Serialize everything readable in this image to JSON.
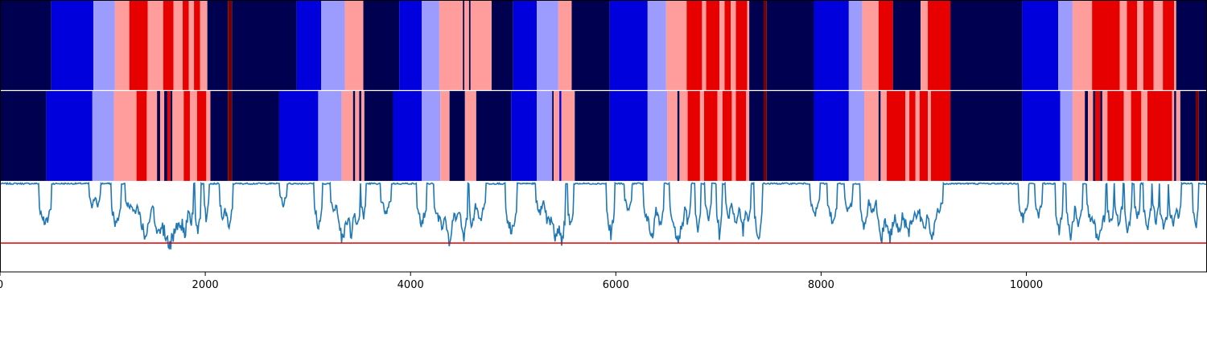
{
  "chart_data": {
    "type": "heatmap",
    "xlim": [
      0,
      11760
    ],
    "x_ticks": [
      0,
      2000,
      4000,
      6000,
      8000,
      10000
    ],
    "x_tick_labels": [
      "0",
      "2000",
      "4000",
      "6000",
      "8000",
      "10000"
    ],
    "colors": {
      "navy": "#000050",
      "blue": "#0000dc",
      "lightblue": "#9c9cff",
      "pink": "#ff9c9c",
      "red": "#e60000",
      "darkred": "#7a0000",
      "line": "#1f77b4",
      "threshold": "#e00000",
      "separator": "#ffffff",
      "frame": "#000000"
    },
    "rows": [
      {
        "segments": [
          [
            0,
            500,
            "navy"
          ],
          [
            500,
            910,
            "blue"
          ],
          [
            910,
            1120,
            "lightblue"
          ],
          [
            1120,
            1260,
            "pink"
          ],
          [
            1260,
            1440,
            "red"
          ],
          [
            1440,
            1590,
            "pink"
          ],
          [
            1590,
            1690,
            "red"
          ],
          [
            1690,
            1780,
            "pink"
          ],
          [
            1780,
            1840,
            "red"
          ],
          [
            1840,
            1890,
            "pink"
          ],
          [
            1890,
            1950,
            "red"
          ],
          [
            1950,
            2020,
            "pink"
          ],
          [
            2020,
            2220,
            "navy"
          ],
          [
            2220,
            2260,
            "darkred"
          ],
          [
            2260,
            2890,
            "navy"
          ],
          [
            2890,
            3130,
            "blue"
          ],
          [
            3130,
            3360,
            "lightblue"
          ],
          [
            3360,
            3540,
            "pink"
          ],
          [
            3540,
            3890,
            "navy"
          ],
          [
            3890,
            4110,
            "blue"
          ],
          [
            4110,
            4280,
            "lightblue"
          ],
          [
            4280,
            4510,
            "pink"
          ],
          [
            4510,
            4525,
            "navy"
          ],
          [
            4525,
            4570,
            "pink"
          ],
          [
            4570,
            4585,
            "navy"
          ],
          [
            4585,
            4790,
            "pink"
          ],
          [
            4790,
            5000,
            "navy"
          ],
          [
            5000,
            5230,
            "blue"
          ],
          [
            5230,
            5440,
            "lightblue"
          ],
          [
            5440,
            5570,
            "pink"
          ],
          [
            5570,
            5940,
            "navy"
          ],
          [
            5940,
            6310,
            "blue"
          ],
          [
            6310,
            6490,
            "lightblue"
          ],
          [
            6490,
            6690,
            "pink"
          ],
          [
            6690,
            6840,
            "red"
          ],
          [
            6840,
            6880,
            "pink"
          ],
          [
            6880,
            7010,
            "red"
          ],
          [
            7010,
            7060,
            "pink"
          ],
          [
            7060,
            7120,
            "red"
          ],
          [
            7120,
            7170,
            "pink"
          ],
          [
            7170,
            7280,
            "red"
          ],
          [
            7280,
            7300,
            "pink"
          ],
          [
            7300,
            7440,
            "navy"
          ],
          [
            7440,
            7470,
            "darkred"
          ],
          [
            7470,
            7930,
            "navy"
          ],
          [
            7930,
            8270,
            "blue"
          ],
          [
            8270,
            8400,
            "lightblue"
          ],
          [
            8400,
            8560,
            "pink"
          ],
          [
            8560,
            8700,
            "red"
          ],
          [
            8700,
            8970,
            "navy"
          ],
          [
            8970,
            9040,
            "pink"
          ],
          [
            9040,
            9260,
            "red"
          ],
          [
            9260,
            9960,
            "navy"
          ],
          [
            9960,
            10310,
            "blue"
          ],
          [
            10310,
            10450,
            "lightblue"
          ],
          [
            10450,
            10640,
            "pink"
          ],
          [
            10640,
            10910,
            "red"
          ],
          [
            10910,
            10980,
            "pink"
          ],
          [
            10980,
            11080,
            "red"
          ],
          [
            11080,
            11140,
            "pink"
          ],
          [
            11140,
            11240,
            "red"
          ],
          [
            11240,
            11330,
            "pink"
          ],
          [
            11330,
            11440,
            "red"
          ],
          [
            11440,
            11460,
            "pink"
          ],
          [
            11460,
            11760,
            "navy"
          ]
        ]
      },
      {
        "segments": [
          [
            0,
            450,
            "navy"
          ],
          [
            450,
            900,
            "blue"
          ],
          [
            900,
            1110,
            "lightblue"
          ],
          [
            1110,
            1330,
            "pink"
          ],
          [
            1330,
            1430,
            "red"
          ],
          [
            1430,
            1530,
            "pink"
          ],
          [
            1530,
            1560,
            "navy"
          ],
          [
            1560,
            1600,
            "pink"
          ],
          [
            1600,
            1630,
            "navy"
          ],
          [
            1630,
            1660,
            "red"
          ],
          [
            1660,
            1680,
            "navy"
          ],
          [
            1680,
            1790,
            "pink"
          ],
          [
            1790,
            1850,
            "red"
          ],
          [
            1850,
            1920,
            "pink"
          ],
          [
            1920,
            2010,
            "red"
          ],
          [
            2010,
            2050,
            "pink"
          ],
          [
            2050,
            2220,
            "navy"
          ],
          [
            2220,
            2260,
            "darkred"
          ],
          [
            2260,
            2720,
            "navy"
          ],
          [
            2720,
            3100,
            "blue"
          ],
          [
            3100,
            3330,
            "lightblue"
          ],
          [
            3330,
            3440,
            "pink"
          ],
          [
            3440,
            3460,
            "navy"
          ],
          [
            3460,
            3500,
            "pink"
          ],
          [
            3500,
            3520,
            "navy"
          ],
          [
            3520,
            3550,
            "pink"
          ],
          [
            3550,
            3830,
            "navy"
          ],
          [
            3830,
            4110,
            "blue"
          ],
          [
            4110,
            4290,
            "lightblue"
          ],
          [
            4290,
            4380,
            "pink"
          ],
          [
            4380,
            4530,
            "navy"
          ],
          [
            4530,
            4640,
            "pink"
          ],
          [
            4640,
            4980,
            "navy"
          ],
          [
            4980,
            5230,
            "blue"
          ],
          [
            5230,
            5380,
            "lightblue"
          ],
          [
            5380,
            5395,
            "navy"
          ],
          [
            5395,
            5450,
            "pink"
          ],
          [
            5450,
            5470,
            "blue"
          ],
          [
            5470,
            5600,
            "pink"
          ],
          [
            5600,
            5940,
            "navy"
          ],
          [
            5940,
            6310,
            "blue"
          ],
          [
            6310,
            6500,
            "lightblue"
          ],
          [
            6500,
            6600,
            "pink"
          ],
          [
            6600,
            6620,
            "navy"
          ],
          [
            6620,
            6700,
            "pink"
          ],
          [
            6700,
            6820,
            "red"
          ],
          [
            6820,
            6860,
            "pink"
          ],
          [
            6860,
            6990,
            "red"
          ],
          [
            6990,
            7040,
            "pink"
          ],
          [
            7040,
            7130,
            "red"
          ],
          [
            7130,
            7170,
            "pink"
          ],
          [
            7170,
            7270,
            "red"
          ],
          [
            7270,
            7300,
            "pink"
          ],
          [
            7300,
            7440,
            "navy"
          ],
          [
            7440,
            7470,
            "darkred"
          ],
          [
            7470,
            7930,
            "navy"
          ],
          [
            7930,
            8270,
            "blue"
          ],
          [
            8270,
            8420,
            "lightblue"
          ],
          [
            8420,
            8560,
            "pink"
          ],
          [
            8560,
            8580,
            "navy"
          ],
          [
            8580,
            8640,
            "pink"
          ],
          [
            8640,
            8820,
            "red"
          ],
          [
            8820,
            8860,
            "pink"
          ],
          [
            8860,
            8920,
            "red"
          ],
          [
            8920,
            8960,
            "pink"
          ],
          [
            8960,
            9040,
            "red"
          ],
          [
            9040,
            9070,
            "pink"
          ],
          [
            9070,
            9260,
            "red"
          ],
          [
            9260,
            9960,
            "navy"
          ],
          [
            9960,
            10330,
            "blue"
          ],
          [
            10330,
            10450,
            "lightblue"
          ],
          [
            10450,
            10570,
            "pink"
          ],
          [
            10570,
            10600,
            "navy"
          ],
          [
            10600,
            10650,
            "pink"
          ],
          [
            10650,
            10670,
            "navy"
          ],
          [
            10670,
            10720,
            "red"
          ],
          [
            10720,
            10740,
            "navy"
          ],
          [
            10740,
            10790,
            "pink"
          ],
          [
            10790,
            10950,
            "red"
          ],
          [
            10950,
            11020,
            "pink"
          ],
          [
            11020,
            11120,
            "red"
          ],
          [
            11120,
            11180,
            "pink"
          ],
          [
            11180,
            11420,
            "red"
          ],
          [
            11420,
            11440,
            "pink"
          ],
          [
            11440,
            11460,
            "navy"
          ],
          [
            11460,
            11500,
            "pink"
          ],
          [
            11500,
            11650,
            "navy"
          ],
          [
            11650,
            11680,
            "darkred"
          ],
          [
            11680,
            11760,
            "navy"
          ]
        ]
      }
    ],
    "line_panel": {
      "ylim": [
        -1.0,
        0.0
      ],
      "threshold": -0.68,
      "baseline": -0.02,
      "dips": [
        [
          440,
          60,
          -0.5
        ],
        [
          900,
          30,
          -0.28
        ],
        [
          950,
          30,
          -0.26
        ],
        [
          1130,
          50,
          -0.5
        ],
        [
          1300,
          80,
          -0.35
        ],
        [
          1410,
          60,
          -0.6
        ],
        [
          1450,
          50,
          -0.45
        ],
        [
          1540,
          40,
          -0.65
        ],
        [
          1650,
          100,
          -0.72
        ],
        [
          1760,
          25,
          -0.55
        ],
        [
          1800,
          35,
          -0.62
        ],
        [
          1860,
          25,
          -0.5
        ],
        [
          1930,
          30,
          -0.58
        ],
        [
          2010,
          25,
          -0.42
        ],
        [
          2170,
          30,
          -0.4
        ],
        [
          2230,
          40,
          -0.5
        ],
        [
          2760,
          40,
          -0.25
        ],
        [
          3100,
          40,
          -0.5
        ],
        [
          3260,
          40,
          -0.35
        ],
        [
          3340,
          60,
          -0.65
        ],
        [
          3420,
          40,
          -0.6
        ],
        [
          3480,
          30,
          -0.55
        ],
        [
          3540,
          25,
          -0.4
        ],
        [
          3760,
          50,
          -0.35
        ],
        [
          4110,
          50,
          -0.48
        ],
        [
          4300,
          70,
          -0.5
        ],
        [
          4380,
          40,
          -0.68
        ],
        [
          4450,
          50,
          -0.42
        ],
        [
          4520,
          40,
          -0.6
        ],
        [
          4600,
          30,
          -0.5
        ],
        [
          4680,
          50,
          -0.42
        ],
        [
          4980,
          60,
          -0.55
        ],
        [
          5260,
          40,
          -0.35
        ],
        [
          5340,
          40,
          -0.48
        ],
        [
          5410,
          70,
          -0.62
        ],
        [
          5470,
          40,
          -0.7
        ],
        [
          5560,
          30,
          -0.5
        ],
        [
          5950,
          40,
          -0.6
        ],
        [
          6120,
          40,
          -0.3
        ],
        [
          6300,
          30,
          -0.45
        ],
        [
          6350,
          40,
          -0.62
        ],
        [
          6430,
          40,
          -0.5
        ],
        [
          6550,
          30,
          -0.4
        ],
        [
          6610,
          60,
          -0.68
        ],
        [
          6700,
          30,
          -0.45
        ],
        [
          6800,
          30,
          -0.5
        ],
        [
          6900,
          35,
          -0.42
        ],
        [
          7010,
          30,
          -0.58
        ],
        [
          7100,
          30,
          -0.42
        ],
        [
          7170,
          40,
          -0.5
        ],
        [
          7240,
          30,
          -0.55
        ],
        [
          7290,
          30,
          -0.45
        ],
        [
          7390,
          40,
          -0.62
        ],
        [
          7940,
          50,
          -0.35
        ],
        [
          8110,
          50,
          -0.45
        ],
        [
          8270,
          40,
          -0.35
        ],
        [
          8420,
          40,
          -0.52
        ],
        [
          8500,
          40,
          -0.35
        ],
        [
          8590,
          50,
          -0.6
        ],
        [
          8670,
          60,
          -0.62
        ],
        [
          8760,
          50,
          -0.55
        ],
        [
          8850,
          60,
          -0.6
        ],
        [
          8920,
          40,
          -0.42
        ],
        [
          9000,
          50,
          -0.55
        ],
        [
          9080,
          50,
          -0.6
        ],
        [
          9150,
          40,
          -0.35
        ],
        [
          9970,
          50,
          -0.42
        ],
        [
          10120,
          40,
          -0.38
        ],
        [
          10320,
          40,
          -0.55
        ],
        [
          10430,
          40,
          -0.62
        ],
        [
          10510,
          40,
          -0.5
        ],
        [
          10620,
          30,
          -0.42
        ],
        [
          10700,
          70,
          -0.65
        ],
        [
          10820,
          30,
          -0.5
        ],
        [
          10900,
          40,
          -0.45
        ],
        [
          10990,
          35,
          -0.55
        ],
        [
          11080,
          30,
          -0.42
        ],
        [
          11180,
          40,
          -0.5
        ],
        [
          11260,
          30,
          -0.45
        ],
        [
          11340,
          40,
          -0.55
        ],
        [
          11430,
          40,
          -0.5
        ],
        [
          11480,
          30,
          -0.42
        ],
        [
          11650,
          30,
          -0.5
        ]
      ]
    }
  }
}
